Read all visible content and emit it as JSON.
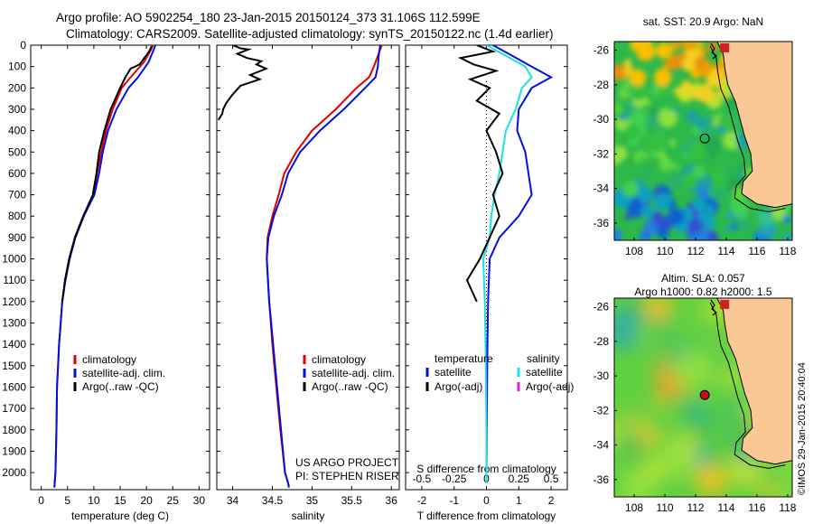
{
  "titles": {
    "line1": "Argo profile: AO 5902254_180 23-Jan-2015 20150124_373 31.106S 112.599E",
    "line2": "Climatology: CARS2009. Satellite-adjusted climatology: synTS_20150122.nc (1.4d earlier)"
  },
  "stamp": "©IMOS 29-Jan-2015 20:40:04",
  "colors": {
    "climatology": "#e00000",
    "satellite": "#0010e0",
    "argo": "#000000",
    "cyan": "#20e0e0",
    "magenta": "#e020e0",
    "land": "#fac894"
  },
  "chart_data": [
    {
      "type": "line",
      "id": "temperature",
      "xlabel": "temperature (deg C)",
      "ylabel": "",
      "xlim": [
        -2,
        32
      ],
      "ylim": [
        2080,
        0
      ],
      "xticks": [
        0,
        5,
        10,
        15,
        20,
        25,
        30
      ],
      "yticks": [
        0,
        100,
        200,
        300,
        400,
        500,
        600,
        700,
        800,
        900,
        1000,
        1100,
        1200,
        1300,
        1400,
        1500,
        1600,
        1700,
        1800,
        1900,
        2000
      ],
      "legend": {
        "placement": "lower-middle",
        "entries": [
          "climatology",
          "satellite-adj. clim.",
          "Argo(..raw -QC)"
        ]
      },
      "series": [
        {
          "name": "climatology",
          "color": "#e00000",
          "x": [
            21.2,
            20.9,
            19.5,
            17.0,
            15.3,
            13.6,
            12.3,
            11.4,
            10.6,
            9.9,
            8.0,
            6.4,
            5.4,
            4.6,
            4.0,
            3.7,
            3.4,
            3.2,
            3.0,
            2.9,
            2.7,
            2.5
          ],
          "y": [
            0,
            20,
            80,
            150,
            200,
            300,
            400,
            500,
            600,
            700,
            800,
            900,
            1000,
            1100,
            1200,
            1300,
            1400,
            1500,
            1600,
            1800,
            2000,
            2070
          ]
        },
        {
          "name": "satellite-adj. clim.",
          "color": "#0010e0",
          "x": [
            21.7,
            21.4,
            20.4,
            18.4,
            16.6,
            14.3,
            12.7,
            11.7,
            11.0,
            10.1,
            8.1,
            6.5,
            5.4,
            4.6,
            4.0,
            3.7,
            3.4,
            3.2,
            3.0,
            2.9,
            2.7,
            2.5
          ],
          "y": [
            0,
            20,
            80,
            150,
            200,
            300,
            400,
            500,
            600,
            700,
            800,
            900,
            1000,
            1100,
            1200,
            1300,
            1400,
            1500,
            1600,
            1800,
            2000,
            2070
          ]
        },
        {
          "name": "Argo(..raw -QC)",
          "color": "#000000",
          "x": [
            21.0,
            20.5,
            18.7,
            17.0,
            16.0,
            15.0,
            13.2,
            12.0,
            11.0,
            10.5,
            9.8,
            8.0,
            6.4,
            5.3,
            4.5,
            4.0
          ],
          "y": [
            5,
            30,
            90,
            110,
            150,
            200,
            300,
            400,
            500,
            600,
            700,
            800,
            900,
            1000,
            1100,
            1200
          ]
        }
      ]
    },
    {
      "type": "line",
      "id": "salinity",
      "xlabel": "salinity",
      "xlim": [
        33.8,
        36.1
      ],
      "ylim": [
        2080,
        0
      ],
      "xticks": [
        34,
        34.5,
        35,
        35.5,
        36
      ],
      "legend": {
        "placement": "lower-middle",
        "entries": [
          "climatology",
          "satellite-adj. clim.",
          "Argo(..raw -QC)"
        ]
      },
      "annotation": [
        "US ARGO PROJECT",
        "PI: STEPHEN RISER"
      ],
      "series": [
        {
          "name": "climatology",
          "color": "#e00000",
          "x": [
            35.88,
            35.83,
            35.78,
            35.72,
            35.56,
            35.3,
            35.0,
            34.8,
            34.65,
            34.58,
            34.5,
            34.44,
            34.43,
            34.46,
            34.5,
            34.55,
            34.6,
            34.66,
            34.7,
            34.71
          ],
          "y": [
            0,
            50,
            100,
            150,
            200,
            300,
            400,
            500,
            600,
            700,
            800,
            900,
            1000,
            1200,
            1400,
            1600,
            1800,
            2000,
            2050,
            2070
          ]
        },
        {
          "name": "satellite-adj. clim.",
          "color": "#0010e0",
          "x": [
            35.86,
            35.84,
            35.83,
            35.8,
            35.67,
            35.4,
            35.1,
            34.85,
            34.7,
            34.62,
            34.52,
            34.45,
            34.43,
            34.46,
            34.51,
            34.56,
            34.61,
            34.66,
            34.7,
            34.71
          ],
          "y": [
            0,
            50,
            100,
            150,
            200,
            300,
            400,
            500,
            600,
            700,
            800,
            900,
            1000,
            1200,
            1400,
            1600,
            1800,
            2000,
            2050,
            2070
          ]
        },
        {
          "name": "Argo(..raw -QC)",
          "color": "#000000",
          "x": [
            34.0,
            34.1,
            34.2,
            34.06,
            34.18,
            34.36,
            34.3,
            34.42,
            34.22,
            34.34,
            34.1,
            34.0,
            33.92,
            33.88,
            33.87,
            33.82
          ],
          "y": [
            0,
            15,
            20,
            40,
            60,
            75,
            90,
            110,
            140,
            160,
            190,
            230,
            270,
            300,
            320,
            350
          ]
        }
      ]
    },
    {
      "type": "line",
      "id": "difference",
      "xlabel": "T difference from climatology",
      "xlabel_top": "S difference from climatology",
      "xlim": [
        -2.5,
        2.5
      ],
      "ylim": [
        2080,
        0
      ],
      "xticks": [
        -2,
        -1,
        0,
        1,
        2
      ],
      "xticks_salinity": [
        "-0.5",
        "-0.25",
        "0",
        "0.25",
        "0.5"
      ],
      "legend": {
        "placement": "lower-middle",
        "headers": [
          "temperature",
          "salinity"
        ],
        "entries": [
          "satellite",
          "Argo(-adj)",
          "satellite",
          "Argo(-adj)"
        ]
      },
      "series": [
        {
          "name": "satellite",
          "group": "temperature",
          "color": "#0010e0",
          "x": [
            0.2,
            0.8,
            1.4,
            2.0,
            1.4,
            1.0,
            0.95,
            1.2,
            1.3,
            1.4,
            1.0,
            0.4,
            0.1,
            0.05,
            0.03,
            0.02,
            0.01,
            0.0
          ],
          "y": [
            0,
            50,
            100,
            150,
            200,
            300,
            400,
            500,
            600,
            700,
            800,
            900,
            1000,
            1200,
            1400,
            1600,
            1800,
            2050
          ]
        },
        {
          "name": "satellite",
          "group": "salinity",
          "color": "#20e0e0",
          "x": [
            0.0,
            0.6,
            1.2,
            1.4,
            1.1,
            0.9,
            0.6,
            0.5,
            0.4,
            0.25,
            0.15,
            0.1,
            -0.1,
            -0.05,
            -0.02,
            0.0,
            0.0
          ],
          "y": [
            0,
            50,
            100,
            150,
            200,
            300,
            400,
            500,
            600,
            700,
            800,
            900,
            1000,
            1200,
            1500,
            1800,
            2050
          ]
        },
        {
          "name": "Argo(-adj)",
          "group": "temperature",
          "color": "#000000",
          "x": [
            -0.3,
            0.2,
            -0.8,
            -0.4,
            0.3,
            -0.5,
            0.1,
            -0.3,
            0.4,
            0.0,
            0.3,
            0.5,
            0.2,
            0.4,
            -0.2,
            -0.6,
            -0.3
          ],
          "y": [
            0,
            30,
            60,
            90,
            120,
            160,
            200,
            260,
            320,
            400,
            500,
            600,
            700,
            800,
            1000,
            1100,
            1200
          ]
        }
      ]
    },
    {
      "type": "heatmap",
      "id": "sst-map",
      "title": "sat. SST: 20.9 Argo: NaN",
      "xlim": [
        106.7,
        118.3
      ],
      "ylim": [
        -37,
        -25.5
      ],
      "xticks": [
        108,
        110,
        112,
        114,
        116,
        118
      ],
      "yticks": [
        -26,
        -28,
        -30,
        -32,
        -34,
        -36
      ],
      "marker": {
        "lon": 112.599,
        "lat": -31.106,
        "filled": false
      }
    },
    {
      "type": "heatmap",
      "id": "sla-map",
      "title": "Altim. SLA: 0.057",
      "subtitle": "Argo h1000: 0.82 h2000: 1.5",
      "xlim": [
        106.7,
        118.3
      ],
      "ylim": [
        -37,
        -25.5
      ],
      "xticks": [
        108,
        110,
        112,
        114,
        116,
        118
      ],
      "yticks": [
        -26,
        -28,
        -30,
        -32,
        -34,
        -36
      ],
      "marker": {
        "lon": 112.599,
        "lat": -31.106,
        "filled": true
      }
    }
  ]
}
